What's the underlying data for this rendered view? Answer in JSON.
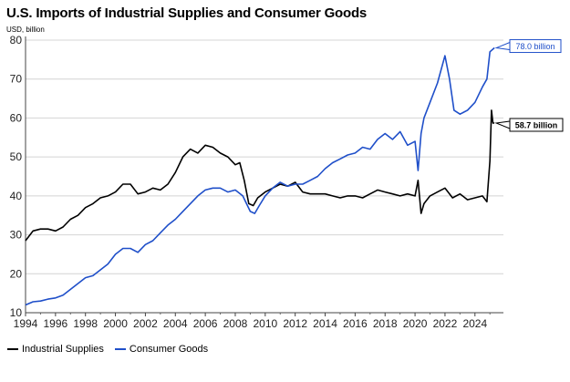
{
  "chart_data": {
    "type": "line",
    "title": "U.S. Imports of Industrial Supplies and Consumer Goods",
    "ylabel": "USD, billion",
    "ylim": [
      10,
      80
    ],
    "yticks": [
      10,
      20,
      30,
      40,
      50,
      60,
      70,
      80
    ],
    "xlim": [
      1994,
      2025.9
    ],
    "xticks": [
      1994,
      1996,
      1998,
      2000,
      2002,
      2004,
      2006,
      2008,
      2010,
      2012,
      2014,
      2016,
      2018,
      2020,
      2022,
      2024
    ],
    "grid": true,
    "legend_position": "bottom-left",
    "series": [
      {
        "name": "Industrial Supplies",
        "color": "#000000",
        "end_label": "58.7 billion",
        "x": [
          1994,
          1994.5,
          1995,
          1995.5,
          1996,
          1996.5,
          1997,
          1997.5,
          1998,
          1998.5,
          1999,
          1999.5,
          2000,
          2000.5,
          2001,
          2001.5,
          2002,
          2002.5,
          2003,
          2003.5,
          2004,
          2004.5,
          2005,
          2005.5,
          2006,
          2006.5,
          2007,
          2007.5,
          2008,
          2008.3,
          2008.6,
          2008.9,
          2009.2,
          2009.5,
          2010,
          2010.5,
          2011,
          2011.5,
          2012,
          2012.5,
          2013,
          2013.5,
          2014,
          2014.5,
          2015,
          2015.5,
          2016,
          2016.5,
          2017,
          2017.5,
          2018,
          2018.5,
          2019,
          2019.5,
          2020,
          2020.2,
          2020.4,
          2020.6,
          2021,
          2021.5,
          2022,
          2022.5,
          2023,
          2023.5,
          2024,
          2024.5,
          2024.8,
          2025.0,
          2025.1,
          2025.2,
          2025.3
        ],
        "values": [
          28.5,
          31,
          31.5,
          31.5,
          31,
          32,
          34,
          35,
          37,
          38,
          39.5,
          40,
          41,
          43,
          43,
          40.5,
          41,
          42,
          41.5,
          43,
          46,
          50,
          52,
          51,
          53,
          52.5,
          51,
          50,
          48,
          48.5,
          44,
          38,
          37.5,
          39.5,
          41,
          42,
          43,
          42.5,
          43.5,
          41,
          40.5,
          40.5,
          40.5,
          40,
          39.5,
          40,
          40,
          39.5,
          40.5,
          41.5,
          41,
          40.5,
          40,
          40.5,
          40,
          44,
          35.5,
          38,
          40,
          41,
          42,
          39.5,
          40.5,
          39,
          39.5,
          40,
          38.5,
          49,
          62,
          58.7,
          58.7
        ]
      },
      {
        "name": "Consumer Goods",
        "color": "#1f4fc9",
        "end_label": "78.0 billion",
        "x": [
          1994,
          1994.5,
          1995,
          1995.5,
          1996,
          1996.5,
          1997,
          1997.5,
          1998,
          1998.5,
          1999,
          1999.5,
          2000,
          2000.5,
          2001,
          2001.5,
          2002,
          2002.5,
          2003,
          2003.5,
          2004,
          2004.5,
          2005,
          2005.5,
          2006,
          2006.5,
          2007,
          2007.5,
          2008,
          2008.5,
          2009,
          2009.3,
          2009.6,
          2010,
          2010.5,
          2011,
          2011.5,
          2012,
          2012.5,
          2013,
          2013.5,
          2014,
          2014.5,
          2015,
          2015.5,
          2016,
          2016.5,
          2017,
          2017.5,
          2018,
          2018.5,
          2019,
          2019.5,
          2020,
          2020.2,
          2020.4,
          2020.6,
          2021,
          2021.5,
          2022,
          2022.3,
          2022.6,
          2023,
          2023.5,
          2024,
          2024.5,
          2024.8,
          2025.0,
          2025.3
        ],
        "values": [
          12,
          12.8,
          13,
          13.5,
          13.8,
          14.5,
          16,
          17.5,
          19,
          19.5,
          21,
          22.5,
          25,
          26.5,
          26.5,
          25.5,
          27.5,
          28.5,
          30.5,
          32.5,
          34,
          36,
          38,
          40,
          41.5,
          42,
          42,
          41,
          41.5,
          40,
          36,
          35.5,
          37.5,
          40,
          42,
          43.5,
          42.5,
          43,
          43,
          44,
          45,
          47,
          48.5,
          49.5,
          50.5,
          51,
          52.5,
          52,
          54.5,
          56,
          54.5,
          56.5,
          53,
          54,
          46.5,
          56,
          60,
          64,
          69,
          76,
          70,
          62,
          61,
          62,
          64,
          68,
          70,
          77,
          78
        ]
      }
    ]
  }
}
